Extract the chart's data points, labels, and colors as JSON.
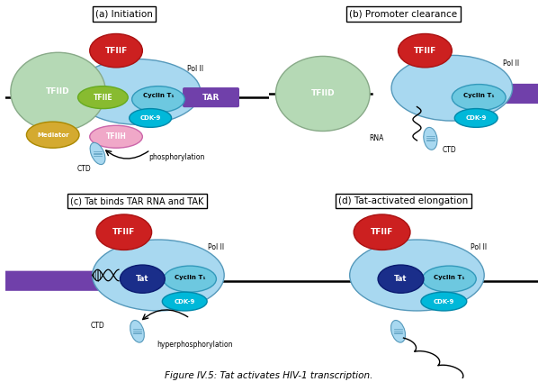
{
  "title": "Figure IV.5: Tat activates HIV-1 transcription.",
  "colors": {
    "TFIID": "#b5d9b5",
    "TFIIF": "#cc2020",
    "PolII": "#a8d8f0",
    "CyclinT1": "#6dc8e0",
    "CDK9": "#00b8d9",
    "TFIIE": "#88bb30",
    "TFIIH": "#f0a8c8",
    "Mediator": "#d4aa30",
    "TAR": "#7040aa",
    "Tat": "#1a2e8a",
    "background": "#ffffff",
    "DNA": "#111111",
    "CTD_fill": "#a8d8f0",
    "CTD_line": "#5599bb"
  },
  "panel_labels": {
    "a": "(a) Initiation",
    "b": "(b) Promoter clearance",
    "c": "(c) Tat binds TAR RNA and TAK",
    "d": "(d) Tat-activated elongation"
  }
}
